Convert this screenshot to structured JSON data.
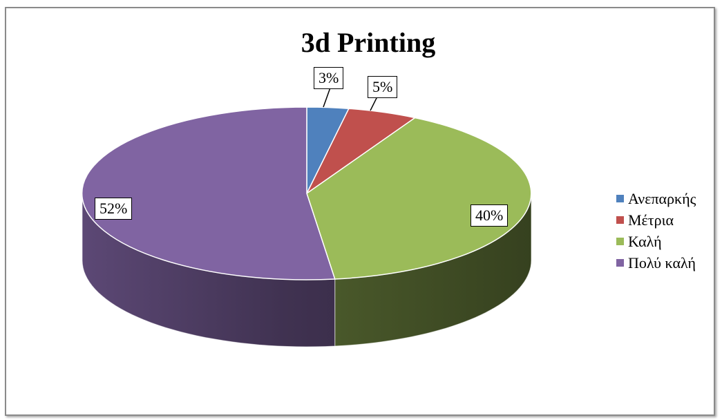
{
  "chart_data": {
    "type": "pie",
    "title": "3d Printing",
    "categories": [
      "Ανεπαρκής",
      "Μέτρια",
      "Καλή",
      "Πολύ καλή"
    ],
    "values": [
      3,
      5,
      40,
      52
    ],
    "labels": [
      "3%",
      "5%",
      "40%",
      "52%"
    ],
    "colors": [
      "#4f81bd",
      "#c0504d",
      "#9bbb59",
      "#8064a2"
    ],
    "legend_position": "right",
    "style": "3d"
  }
}
